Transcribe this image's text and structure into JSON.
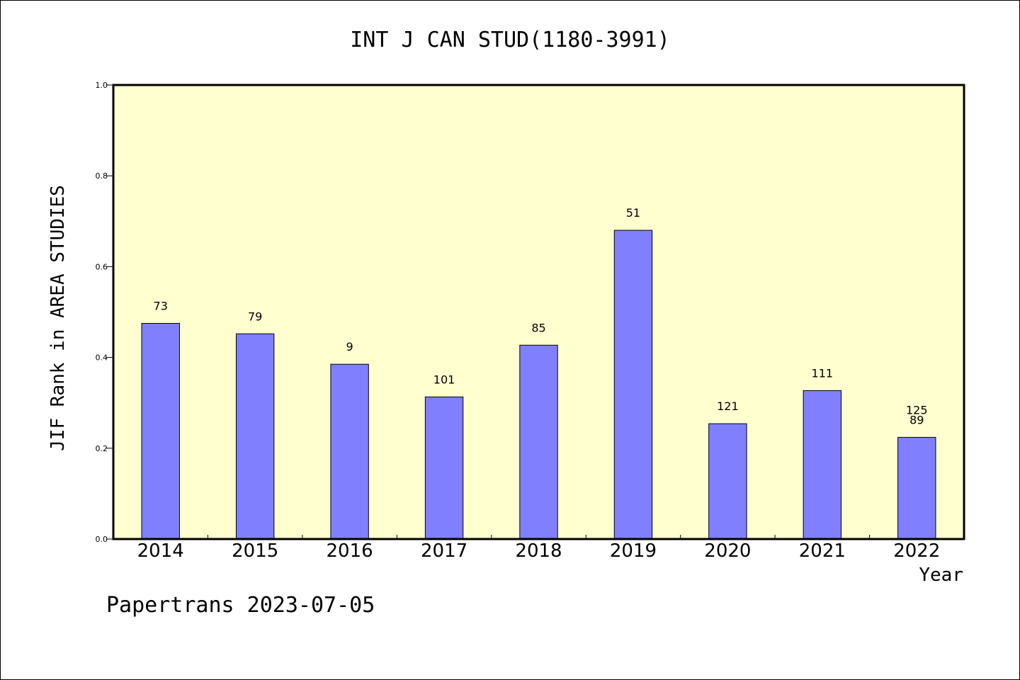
{
  "chart_data": {
    "type": "bar",
    "title": "INT J CAN STUD(1180-3991)",
    "xlabel": "Year",
    "ylabel": "JIF Rank in AREA STUDIES",
    "ylim": [
      0.0,
      1.0
    ],
    "yticks": [
      "0.0",
      "0.2",
      "0.4",
      "0.6",
      "0.8",
      "1.0"
    ],
    "categories": [
      "2014",
      "2015",
      "2016",
      "2017",
      "2018",
      "2019",
      "2020",
      "2021",
      "2022"
    ],
    "values": [
      0.475,
      0.452,
      0.385,
      0.313,
      0.427,
      0.68,
      0.254,
      0.327,
      0.224
    ],
    "labels": [
      "73",
      "79",
      "9",
      "101",
      "85",
      "51",
      "121",
      "111",
      "125\n89"
    ],
    "grid": false,
    "colors": {
      "bar": "#8080ff",
      "plot_background": "#ffffd0",
      "axis": "#000000"
    }
  },
  "footer": "Papertrans 2023-07-05"
}
